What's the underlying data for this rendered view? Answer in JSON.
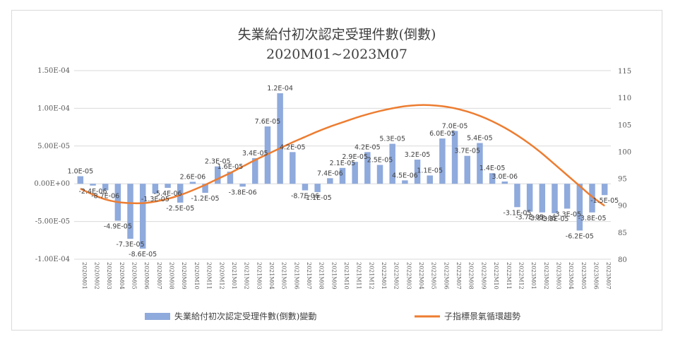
{
  "chart_data": {
    "type": "bar+line",
    "title": "失業給付初次認定受理件數(倒數)",
    "subtitle": "2020M01~2023M07",
    "categories": [
      "2020M01",
      "2020M02",
      "2020M03",
      "2020M04",
      "2020M05",
      "2020M06",
      "2020M07",
      "2020M08",
      "2020M09",
      "2020M10",
      "2020M11",
      "2020M12",
      "2021M01",
      "2021M02",
      "2021M03",
      "2021M04",
      "2021M05",
      "2021M06",
      "2021M07",
      "2021M08",
      "2021M09",
      "2021M10",
      "2021M11",
      "2021M12",
      "2022M01",
      "2022M02",
      "2022M03",
      "2022M04",
      "2022M05",
      "2022M06",
      "2022M07",
      "2022M08",
      "2022M09",
      "2022M10",
      "2022M11",
      "2022M12",
      "2023M01",
      "2023M02",
      "2023M03",
      "2023M04",
      "2023M05",
      "2023M06",
      "2023M07"
    ],
    "series": [
      {
        "name": "失業給付初次認定受理件數(倒數)變動",
        "type": "bar",
        "axis": "left",
        "color": "#8faadc",
        "values": [
          1e-05,
          -2.4e-06,
          -8.7e-06,
          -4.9e-05,
          -7.3e-05,
          -8.6e-05,
          -1.3e-05,
          -5.4e-06,
          -2.5e-05,
          2.6e-06,
          -1.2e-05,
          2.3e-05,
          1.6e-05,
          -3.8e-06,
          3.4e-05,
          7.6e-05,
          0.00012,
          4.2e-05,
          -8.7e-06,
          -1.1e-05,
          7.4e-06,
          2.1e-05,
          2.9e-05,
          4.2e-05,
          2.5e-05,
          5.3e-05,
          4.5e-06,
          3.2e-05,
          1.1e-05,
          6e-05,
          7e-05,
          3.7e-05,
          5.4e-05,
          1.4e-05,
          3e-06,
          -3.1e-05,
          -3.7e-05,
          -3.8e-05,
          -3.9e-05,
          -3.3e-05,
          -6.2e-05,
          -3.8e-05,
          -1.5e-05
        ],
        "labels": [
          "1.0E-05",
          "-2.4E-06",
          "-8.7E-06",
          "-4.9E-05",
          "-7.3E-05",
          "-8.6E-05",
          "-1.3E-05",
          "-5.4E-06",
          "-2.5E-05",
          "2.6E-06",
          "-1.2E-05",
          "2.3E-05",
          "1.6E-05",
          "-3.8E-06",
          "3.4E-05",
          "7.6E-05",
          "1.2E-04",
          "4.2E-05",
          "-8.7E-06",
          "-1.1E-05",
          "7.4E-06",
          "2.1E-05",
          "2.9E-05",
          "4.2E-05",
          "2.5E-05",
          "5.3E-05",
          "4.5E-06",
          "3.2E-05",
          "1.1E-05",
          "6.0E-05",
          "7.0E-05",
          "3.7E-05",
          "5.4E-05",
          "1.4E-05",
          "3.0E-06",
          "-3.1E-05",
          "-3.7E-05",
          "-3.8E-05",
          "-3.9E-05",
          "-3.3E-05",
          "-6.2E-05",
          "-3.8E-05",
          "-1.5E-05"
        ]
      },
      {
        "name": "子指標景氣循環趨勢",
        "type": "line",
        "axis": "right",
        "color": "#ed7d31",
        "values": [
          93.1,
          92.0,
          91.1,
          90.6,
          90.4,
          90.4,
          90.7,
          91.2,
          91.9,
          92.8,
          93.8,
          94.9,
          96.0,
          97.2,
          98.4,
          99.5,
          100.6,
          101.7,
          102.7,
          103.7,
          104.6,
          105.4,
          106.2,
          106.9,
          107.5,
          108.0,
          108.4,
          108.6,
          108.6,
          108.4,
          108.0,
          107.4,
          106.6,
          105.6,
          104.4,
          103.0,
          101.4,
          99.6,
          97.6,
          95.6,
          93.6,
          91.6,
          89.9
        ]
      }
    ],
    "y_left": {
      "ylim": [
        -0.0001,
        0.00015
      ],
      "ticks": [
        -0.0001,
        -5e-05,
        0,
        5e-05,
        0.0001,
        0.00015
      ],
      "tick_labels": [
        "-1.00E-04",
        "-5.00E-05",
        "0.00E+00",
        "5.00E-05",
        "1.00E-04",
        "1.50E-04"
      ]
    },
    "y_right": {
      "ylim": [
        80,
        115
      ],
      "ticks": [
        80,
        85,
        90,
        95,
        100,
        105,
        110,
        115
      ],
      "tick_labels": [
        "80",
        "85",
        "90",
        "95",
        "100",
        "105",
        "110",
        "115"
      ]
    },
    "grid": true,
    "legend_position": "bottom"
  }
}
